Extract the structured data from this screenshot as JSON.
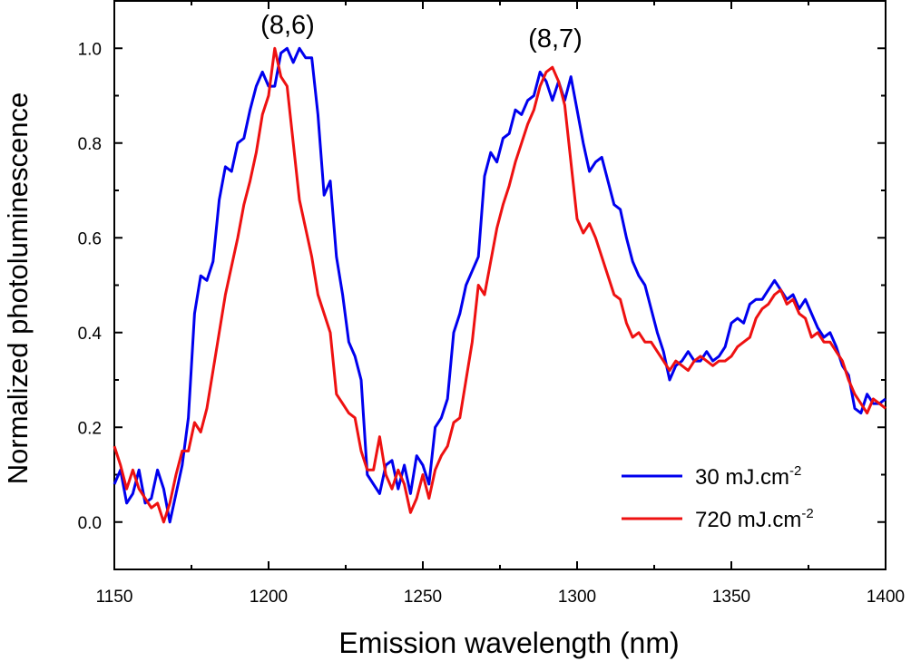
{
  "chart_data": {
    "type": "line",
    "title": "",
    "xlabel": "Emission wavelength (nm)",
    "ylabel": "Normalized photoluminescence",
    "xlim": [
      1150,
      1400
    ],
    "ylim": [
      -0.1,
      1.1
    ],
    "xticks": [
      1150,
      1200,
      1250,
      1300,
      1350,
      1400
    ],
    "yticks": [
      0.0,
      0.2,
      0.4,
      0.6,
      0.8,
      1.0
    ],
    "xtick_labels": [
      "1150",
      "1200",
      "1250",
      "1300",
      "1350",
      "1400"
    ],
    "ytick_labels": [
      "0.0",
      "0.2",
      "0.4",
      "0.6",
      "0.8",
      "1.0"
    ],
    "grid": false,
    "legend_position": "bottom-right",
    "annotations": [
      {
        "text": "(8,6)",
        "x": 1203,
        "y": 1.05
      },
      {
        "text": "(8,7)",
        "x": 1293,
        "y": 1.02
      }
    ],
    "series": [
      {
        "name": "30 mJ.cm",
        "unit_superscript": "-2",
        "color": "#0000ee",
        "x": [
          1150,
          1152,
          1154,
          1156,
          1158,
          1160,
          1162,
          1164,
          1166,
          1168,
          1170,
          1172,
          1174,
          1176,
          1178,
          1180,
          1182,
          1184,
          1186,
          1188,
          1190,
          1192,
          1194,
          1196,
          1198,
          1200,
          1202,
          1204,
          1206,
          1208,
          1210,
          1212,
          1214,
          1216,
          1218,
          1220,
          1222,
          1224,
          1226,
          1228,
          1230,
          1232,
          1234,
          1236,
          1238,
          1240,
          1242,
          1244,
          1246,
          1248,
          1250,
          1252,
          1254,
          1256,
          1258,
          1260,
          1262,
          1264,
          1266,
          1268,
          1270,
          1272,
          1274,
          1276,
          1278,
          1280,
          1282,
          1284,
          1286,
          1288,
          1290,
          1292,
          1294,
          1296,
          1298,
          1300,
          1302,
          1304,
          1306,
          1308,
          1310,
          1312,
          1314,
          1316,
          1318,
          1320,
          1322,
          1324,
          1326,
          1328,
          1330,
          1332,
          1334,
          1336,
          1338,
          1340,
          1342,
          1344,
          1346,
          1348,
          1350,
          1352,
          1354,
          1356,
          1358,
          1360,
          1362,
          1364,
          1366,
          1368,
          1370,
          1372,
          1374,
          1376,
          1378,
          1380,
          1382,
          1384,
          1386,
          1388,
          1390,
          1392,
          1394,
          1396,
          1398,
          1400
        ],
        "y": [
          0.08,
          0.11,
          0.04,
          0.06,
          0.11,
          0.04,
          0.05,
          0.11,
          0.07,
          0.0,
          0.06,
          0.12,
          0.22,
          0.44,
          0.52,
          0.51,
          0.55,
          0.68,
          0.75,
          0.74,
          0.8,
          0.81,
          0.87,
          0.92,
          0.95,
          0.92,
          0.92,
          0.99,
          1.0,
          0.97,
          1.0,
          0.98,
          0.98,
          0.86,
          0.69,
          0.72,
          0.56,
          0.48,
          0.38,
          0.35,
          0.3,
          0.1,
          0.08,
          0.06,
          0.12,
          0.13,
          0.07,
          0.12,
          0.06,
          0.14,
          0.12,
          0.08,
          0.2,
          0.22,
          0.26,
          0.4,
          0.44,
          0.5,
          0.53,
          0.56,
          0.73,
          0.78,
          0.76,
          0.81,
          0.82,
          0.87,
          0.86,
          0.89,
          0.9,
          0.95,
          0.93,
          0.89,
          0.93,
          0.89,
          0.94,
          0.87,
          0.8,
          0.74,
          0.76,
          0.77,
          0.72,
          0.67,
          0.66,
          0.6,
          0.55,
          0.52,
          0.5,
          0.45,
          0.4,
          0.36,
          0.3,
          0.33,
          0.34,
          0.36,
          0.34,
          0.34,
          0.36,
          0.34,
          0.35,
          0.37,
          0.42,
          0.43,
          0.42,
          0.46,
          0.47,
          0.47,
          0.49,
          0.51,
          0.49,
          0.47,
          0.48,
          0.45,
          0.47,
          0.44,
          0.41,
          0.39,
          0.4,
          0.37,
          0.33,
          0.31,
          0.24,
          0.23,
          0.27,
          0.25,
          0.25,
          0.26
        ]
      },
      {
        "name": "720 mJ.cm",
        "unit_superscript": "-2",
        "color": "#ee1111",
        "x": [
          1150,
          1152,
          1154,
          1156,
          1158,
          1160,
          1162,
          1164,
          1166,
          1168,
          1170,
          1172,
          1174,
          1176,
          1178,
          1180,
          1182,
          1184,
          1186,
          1188,
          1190,
          1192,
          1194,
          1196,
          1198,
          1200,
          1202,
          1204,
          1206,
          1208,
          1210,
          1212,
          1214,
          1216,
          1218,
          1220,
          1222,
          1224,
          1226,
          1228,
          1230,
          1232,
          1234,
          1236,
          1238,
          1240,
          1242,
          1244,
          1246,
          1248,
          1250,
          1252,
          1254,
          1256,
          1258,
          1260,
          1262,
          1264,
          1266,
          1268,
          1270,
          1272,
          1274,
          1276,
          1278,
          1280,
          1282,
          1284,
          1286,
          1288,
          1290,
          1292,
          1294,
          1296,
          1298,
          1300,
          1302,
          1304,
          1306,
          1308,
          1310,
          1312,
          1314,
          1316,
          1318,
          1320,
          1322,
          1324,
          1326,
          1328,
          1330,
          1332,
          1334,
          1336,
          1338,
          1340,
          1342,
          1344,
          1346,
          1348,
          1350,
          1352,
          1354,
          1356,
          1358,
          1360,
          1362,
          1364,
          1366,
          1368,
          1370,
          1372,
          1374,
          1376,
          1378,
          1380,
          1382,
          1384,
          1386,
          1388,
          1390,
          1392,
          1394,
          1396,
          1398,
          1400
        ],
        "y": [
          0.16,
          0.12,
          0.07,
          0.11,
          0.07,
          0.05,
          0.03,
          0.04,
          0.0,
          0.04,
          0.1,
          0.15,
          0.15,
          0.21,
          0.19,
          0.24,
          0.32,
          0.4,
          0.48,
          0.54,
          0.6,
          0.67,
          0.72,
          0.78,
          0.86,
          0.9,
          1.0,
          0.94,
          0.92,
          0.8,
          0.68,
          0.62,
          0.56,
          0.48,
          0.44,
          0.4,
          0.27,
          0.25,
          0.23,
          0.22,
          0.15,
          0.11,
          0.11,
          0.18,
          0.1,
          0.07,
          0.11,
          0.08,
          0.02,
          0.05,
          0.1,
          0.05,
          0.11,
          0.14,
          0.16,
          0.21,
          0.22,
          0.3,
          0.38,
          0.5,
          0.48,
          0.55,
          0.62,
          0.67,
          0.71,
          0.76,
          0.8,
          0.84,
          0.87,
          0.92,
          0.95,
          0.96,
          0.93,
          0.88,
          0.76,
          0.64,
          0.61,
          0.63,
          0.6,
          0.56,
          0.52,
          0.48,
          0.47,
          0.42,
          0.39,
          0.4,
          0.38,
          0.38,
          0.36,
          0.34,
          0.32,
          0.34,
          0.33,
          0.32,
          0.34,
          0.35,
          0.34,
          0.33,
          0.34,
          0.34,
          0.35,
          0.37,
          0.38,
          0.39,
          0.43,
          0.45,
          0.46,
          0.48,
          0.49,
          0.46,
          0.47,
          0.44,
          0.43,
          0.39,
          0.4,
          0.38,
          0.38,
          0.36,
          0.34,
          0.3,
          0.27,
          0.25,
          0.23,
          0.26,
          0.25,
          0.24
        ]
      }
    ]
  }
}
